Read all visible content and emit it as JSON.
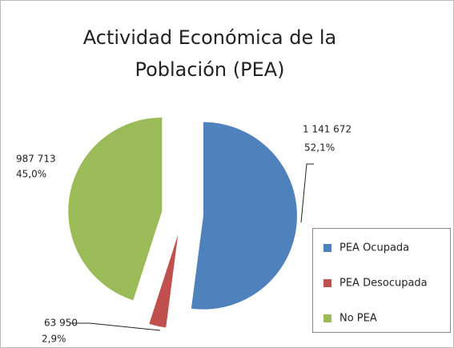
{
  "chart_data": {
    "type": "pie",
    "title": [
      "Actividad Económica de la",
      "Población (PEA)"
    ],
    "categories": [
      "PEA Ocupada",
      "PEA Desocupada",
      "No PEA"
    ],
    "values": [
      1141672,
      63950,
      987713
    ],
    "value_labels": [
      "1 141 672",
      "63 950",
      "987 713"
    ],
    "percents": [
      52.1,
      2.9,
      45.0
    ],
    "percent_labels": [
      "52,1%",
      "2,9%",
      "45,0%"
    ],
    "colors": [
      "#4f81bd",
      "#c0504d",
      "#9bbb59"
    ],
    "legend": "right"
  }
}
